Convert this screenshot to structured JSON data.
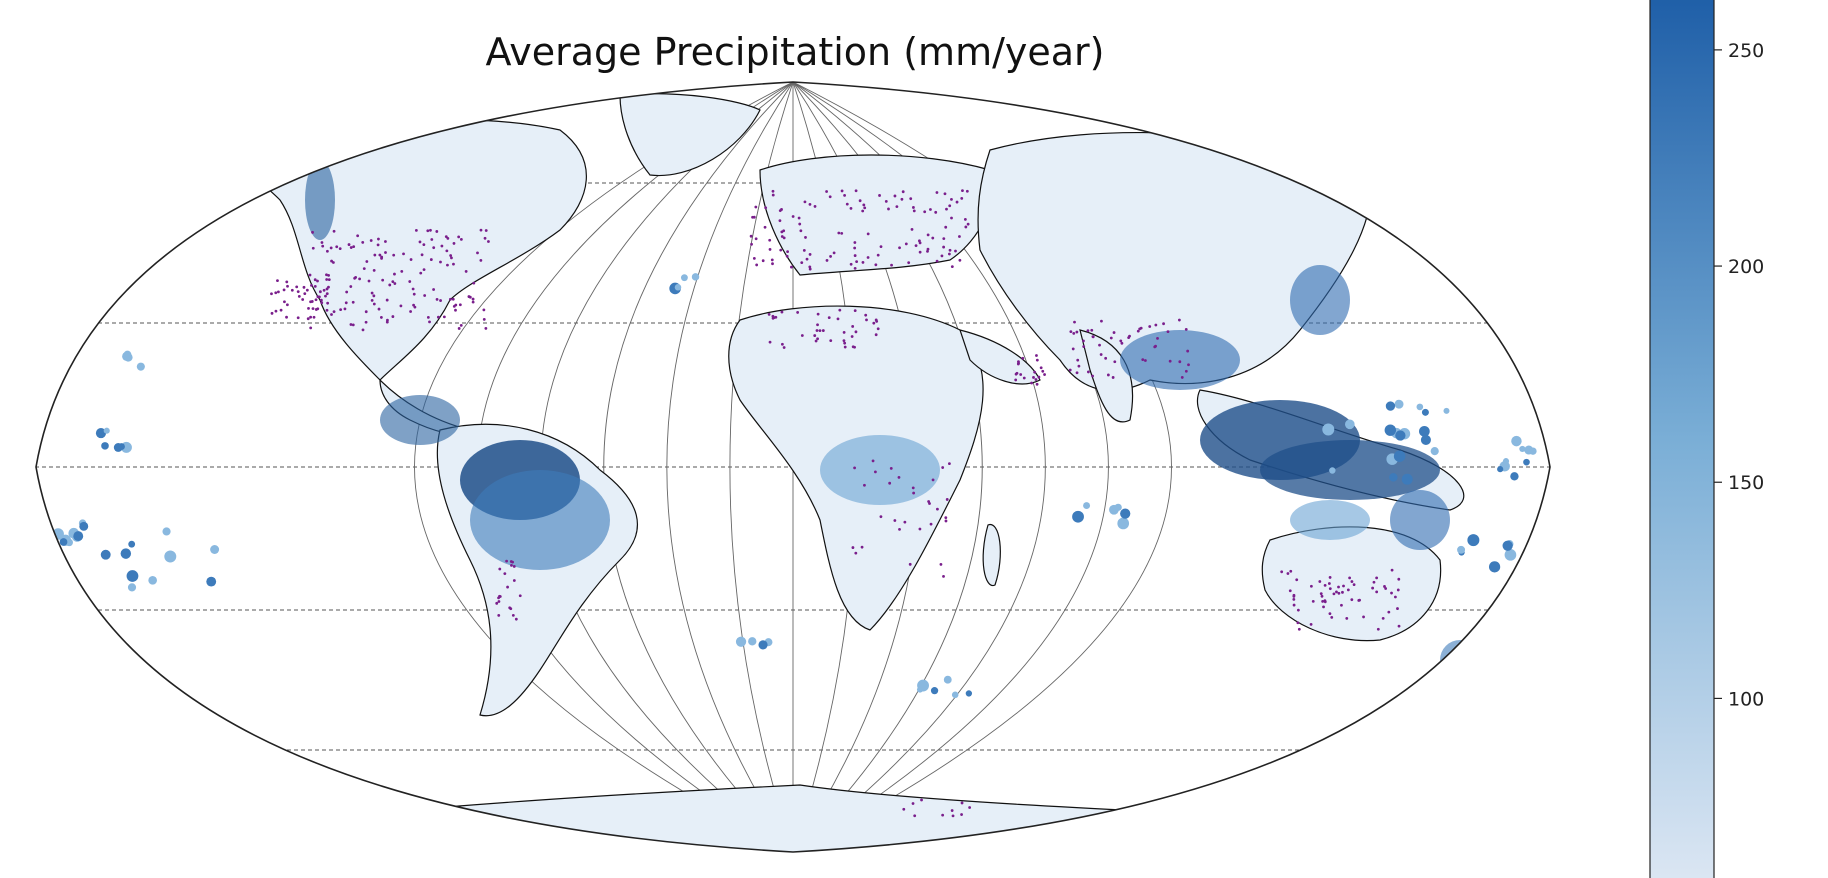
{
  "map": {
    "title": "Average Precipitation (mm/year)",
    "projection": "Robinson",
    "colormap": "Blues",
    "land_outline_color": "#000000",
    "gridline_style": "dashed",
    "station_marker_color": "#7a1f8c",
    "water_color": "#ffffff"
  },
  "colorbar": {
    "orientation": "vertical",
    "placement": "right",
    "ticks": [
      "250",
      "200",
      "150",
      "100"
    ],
    "tick_values": [
      250,
      200,
      150,
      100
    ],
    "range": [
      58,
      262
    ],
    "color_low": "#dbe6f3",
    "color_high": "#1f5fa8"
  }
}
